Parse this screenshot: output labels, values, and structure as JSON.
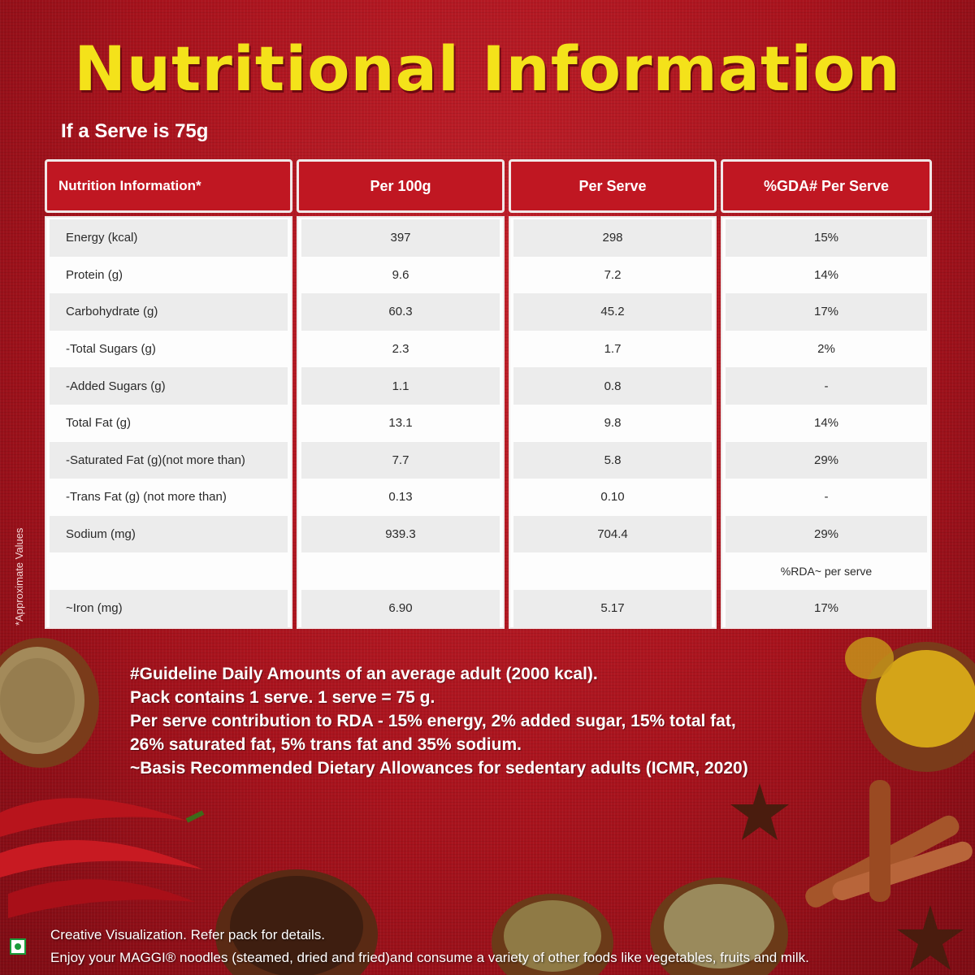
{
  "title": "Nutritional Information",
  "serve_note": "If a Serve is 75g",
  "side_note": "*Approximate Values",
  "table": {
    "headers": [
      "Nutrition Information*",
      "Per 100g",
      "Per Serve",
      "%GDA# Per Serve"
    ],
    "rows": [
      [
        "Energy (kcal)",
        "397",
        "298",
        "15%"
      ],
      [
        "Protein (g)",
        "9.6",
        "7.2",
        "14%"
      ],
      [
        "Carbohydrate (g)",
        "60.3",
        "45.2",
        "17%"
      ],
      [
        "-Total Sugars (g)",
        "2.3",
        "1.7",
        "2%"
      ],
      [
        "-Added Sugars (g)",
        "1.1",
        "0.8",
        "-"
      ],
      [
        "Total Fat (g)",
        "13.1",
        "9.8",
        "14%"
      ],
      [
        "-Saturated Fat (g)(not more than)",
        "7.7",
        "5.8",
        "29%"
      ],
      [
        "-Trans Fat (g) (not more than)",
        "0.13",
        "0.10",
        "-"
      ],
      [
        "Sodium (mg)",
        "939.3",
        "704.4",
        "29%"
      ],
      [
        "",
        "",
        "",
        "%RDA~ per serve"
      ],
      [
        "~Iron (mg)",
        "6.90",
        "5.17",
        "17%"
      ]
    ]
  },
  "footer_lines": [
    "#Guideline Daily Amounts of an average adult  (2000 kcal).",
    "Pack contains 1 serve. 1 serve = 75 g.",
    "Per serve contribution to RDA - 15% energy, 2% added sugar, 15% total fat,",
    "26% saturated fat, 5% trans fat and 35% sodium.",
    "~Basis Recommended Dietary Allowances for sedentary adults (ICMR, 2020)"
  ],
  "bottom_lines": [
    "Creative Visualization. Refer pack for details.",
    "Enjoy your MAGGI® noodles (steamed, dried and fried)and consume a variety of other foods like vegetables, fruits and milk."
  ],
  "colors": {
    "title": "#f4e21a",
    "header_bg": "#c01722",
    "background": "#a8131d",
    "veg_mark": "#1a9a3a"
  }
}
